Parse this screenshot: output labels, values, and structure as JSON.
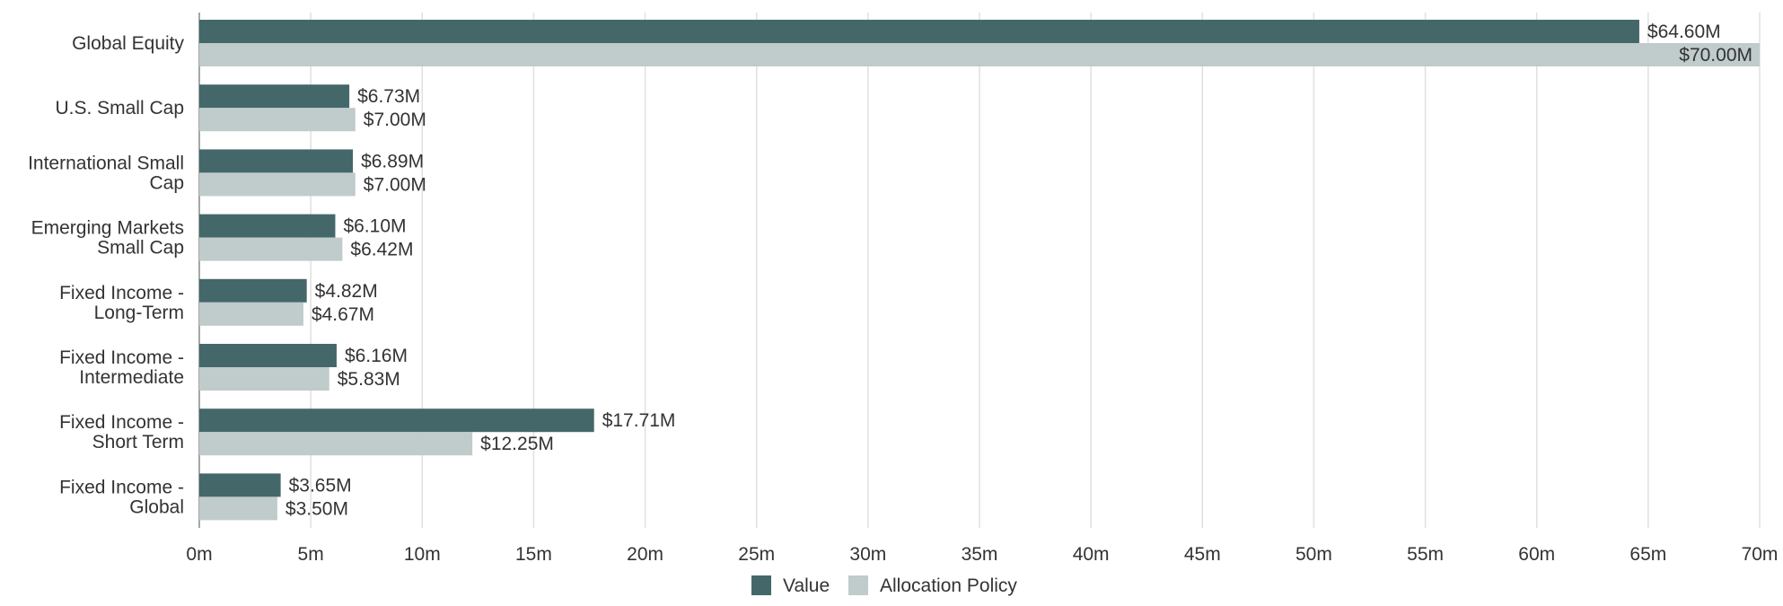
{
  "chart_data": {
    "type": "bar",
    "orientation": "horizontal",
    "categories": [
      [
        "Global Equity"
      ],
      [
        "U.S. Small Cap"
      ],
      [
        "International Small",
        "Cap"
      ],
      [
        "Emerging Markets",
        "Small Cap"
      ],
      [
        "Fixed Income -",
        "Long-Term"
      ],
      [
        "Fixed Income -",
        "Intermediate"
      ],
      [
        "Fixed Income -",
        "Short Term"
      ],
      [
        "Fixed Income -",
        "Global"
      ]
    ],
    "series": [
      {
        "name": "Value",
        "color": "#44686a",
        "values": [
          64.6,
          6.73,
          6.89,
          6.1,
          4.82,
          6.16,
          17.71,
          3.65
        ],
        "labels": [
          "$64.60M",
          "$6.73M",
          "$6.89M",
          "$6.10M",
          "$4.82M",
          "$6.16M",
          "$17.71M",
          "$3.65M"
        ]
      },
      {
        "name": "Allocation Policy",
        "color": "#c0cbcb",
        "values": [
          70.0,
          7.0,
          7.0,
          6.42,
          4.67,
          5.83,
          12.25,
          3.5
        ],
        "labels": [
          "$70.00M",
          "$7.00M",
          "$7.00M",
          "$6.42M",
          "$4.67M",
          "$5.83M",
          "$12.25M",
          "$3.50M"
        ]
      }
    ],
    "xlim": [
      0,
      70
    ],
    "xticks": [
      0,
      5,
      10,
      15,
      20,
      25,
      30,
      35,
      40,
      45,
      50,
      55,
      60,
      65,
      70
    ],
    "xtick_labels": [
      "0m",
      "5m",
      "10m",
      "15m",
      "20m",
      "25m",
      "30m",
      "35m",
      "40m",
      "45m",
      "50m",
      "55m",
      "60m",
      "65m",
      "70m"
    ],
    "grid": true,
    "legend_position": "bottom-center",
    "grid_color": "#e0e0e0",
    "axis_color": "#888888"
  }
}
